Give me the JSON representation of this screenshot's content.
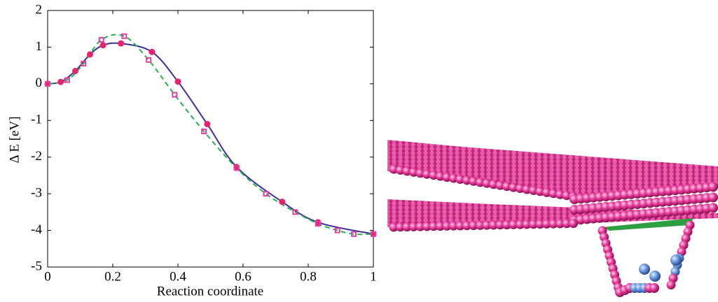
{
  "chart_data": {
    "type": "line",
    "xlabel": "Reaction coordinate",
    "ylabel": "Δ E [eV]",
    "xlim": [
      0,
      1
    ],
    "xticks": [
      0,
      0.2,
      0.4,
      0.6,
      0.8,
      1
    ],
    "ylim": [
      -5,
      2
    ],
    "yticks": [
      -5,
      -4,
      -3,
      -2,
      -1,
      0,
      1,
      2
    ],
    "series": [
      {
        "color": "#3b2fa3",
        "marker": "circle",
        "marker_color": "#e8236b",
        "dash": false,
        "x": [
          0,
          0.04,
          0.085,
          0.13,
          0.17,
          0.225,
          0.32,
          0.4,
          0.49,
          0.58,
          0.72,
          0.83,
          1.0
        ],
        "values": [
          0,
          0.05,
          0.35,
          0.8,
          1.05,
          1.1,
          0.87,
          0.06,
          -1.1,
          -2.27,
          -3.22,
          -3.78,
          -4.1
        ]
      },
      {
        "color": "#22b14c",
        "marker": "square",
        "marker_color": "#e040a0",
        "dash": true,
        "x": [
          0,
          0.06,
          0.11,
          0.165,
          0.235,
          0.31,
          0.39,
          0.48,
          0.58,
          0.67,
          0.76,
          0.83,
          0.89,
          0.94,
          1.0
        ],
        "values": [
          0,
          0.1,
          0.55,
          1.2,
          1.3,
          0.65,
          -0.3,
          -1.3,
          -2.3,
          -3.0,
          -3.5,
          -3.82,
          -4.0,
          -4.1,
          -4.1
        ]
      }
    ]
  }
}
